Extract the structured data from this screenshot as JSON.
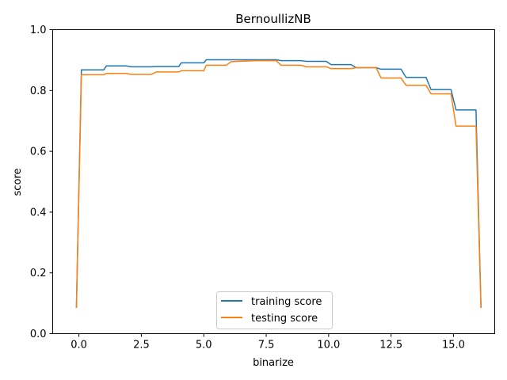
{
  "chart_data": {
    "type": "line",
    "title": "BernoullizNB",
    "xlabel": "binarize",
    "ylabel": "score",
    "xlim": [
      -1.05,
      16.65
    ],
    "ylim": [
      0.0,
      1.0
    ],
    "xticks": [
      0.0,
      2.5,
      5.0,
      7.5,
      10.0,
      12.5,
      15.0
    ],
    "xtick_labels": [
      "0.0",
      "2.5",
      "5.0",
      "7.5",
      "10.0",
      "12.5",
      "15.0"
    ],
    "yticks": [
      0.0,
      0.2,
      0.4,
      0.6,
      0.8,
      1.0
    ],
    "ytick_labels": [
      "0.0",
      "0.2",
      "0.4",
      "0.6",
      "0.8",
      "1.0"
    ],
    "grid": false,
    "legend_position": "lower center",
    "x": [
      -0.1,
      0.1,
      1.0,
      1.1,
      1.9,
      2.1,
      2.9,
      3.1,
      4.0,
      4.1,
      5.0,
      5.1,
      5.9,
      6.1,
      7.1,
      7.9,
      8.1,
      8.9,
      9.1,
      9.9,
      10.1,
      10.9,
      11.1,
      11.9,
      12.1,
      12.9,
      13.1,
      13.9,
      14.1,
      14.9,
      15.1,
      15.9,
      16.1
    ],
    "series": [
      {
        "name": "training score",
        "color": "#1f77b4",
        "values": [
          0.085,
          0.868,
          0.868,
          0.881,
          0.881,
          0.878,
          0.878,
          0.879,
          0.879,
          0.891,
          0.891,
          0.901,
          0.901,
          0.901,
          0.901,
          0.901,
          0.898,
          0.898,
          0.896,
          0.896,
          0.885,
          0.885,
          0.875,
          0.875,
          0.87,
          0.87,
          0.843,
          0.843,
          0.803,
          0.803,
          0.736,
          0.736,
          0.085
        ]
      },
      {
        "name": "testing score",
        "color": "#ff7f0e",
        "values": [
          0.085,
          0.852,
          0.852,
          0.856,
          0.856,
          0.853,
          0.853,
          0.861,
          0.861,
          0.865,
          0.865,
          0.883,
          0.883,
          0.895,
          0.898,
          0.898,
          0.883,
          0.883,
          0.878,
          0.878,
          0.872,
          0.872,
          0.875,
          0.875,
          0.841,
          0.841,
          0.817,
          0.817,
          0.789,
          0.789,
          0.683,
          0.683,
          0.085
        ]
      }
    ]
  }
}
